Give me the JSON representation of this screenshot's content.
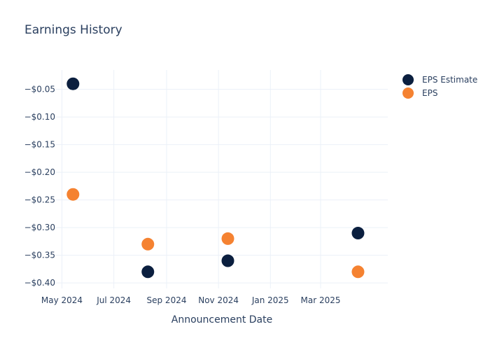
{
  "chart_data": {
    "type": "scatter",
    "title": "Earnings History",
    "xlabel": "Announcement Date",
    "ylabel": "",
    "x_ticks": [
      {
        "date": "2024-05-01",
        "label": "May 2024"
      },
      {
        "date": "2024-07-01",
        "label": "Jul 2024"
      },
      {
        "date": "2024-09-01",
        "label": "Sep 2024"
      },
      {
        "date": "2024-11-01",
        "label": "Nov 2024"
      },
      {
        "date": "2025-01-01",
        "label": "Jan 2025"
      },
      {
        "date": "2025-03-01",
        "label": "Mar 2025"
      }
    ],
    "y_ticks": [
      {
        "value": -0.05,
        "label": "−$0.05"
      },
      {
        "value": -0.1,
        "label": "−$0.10"
      },
      {
        "value": -0.15,
        "label": "−$0.15"
      },
      {
        "value": -0.2,
        "label": "−$0.20"
      },
      {
        "value": -0.25,
        "label": "−$0.25"
      },
      {
        "value": -0.3,
        "label": "−$0.30"
      },
      {
        "value": -0.35,
        "label": "−$0.35"
      },
      {
        "value": -0.4,
        "label": "−$0.40"
      }
    ],
    "xlim": [
      "2024-04-24",
      "2025-05-19"
    ],
    "ylim": [
      -0.41,
      -0.015
    ],
    "grid": true,
    "legend_position": "top-right",
    "series": [
      {
        "name": "EPS Estimate",
        "color": "#0b1f3f",
        "points": [
          {
            "x": "2024-05-14",
            "y": -0.04
          },
          {
            "x": "2024-08-10",
            "y": -0.38
          },
          {
            "x": "2024-11-12",
            "y": -0.36
          },
          {
            "x": "2025-04-14",
            "y": -0.31
          }
        ]
      },
      {
        "name": "EPS",
        "color": "#f58231",
        "points": [
          {
            "x": "2024-05-14",
            "y": -0.24
          },
          {
            "x": "2024-08-10",
            "y": -0.33
          },
          {
            "x": "2024-11-12",
            "y": -0.32
          },
          {
            "x": "2025-04-14",
            "y": -0.38
          }
        ]
      }
    ]
  }
}
